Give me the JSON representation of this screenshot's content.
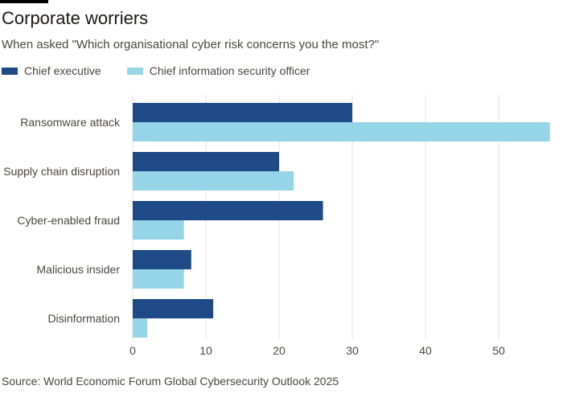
{
  "header": {
    "title": "Corporate worriers",
    "subtitle": "When asked \"Which organisational cyber risk concerns you the most?\""
  },
  "colors": {
    "series1": "#1e4b87",
    "series2": "#96d4e8",
    "grid": "#e6e1dd"
  },
  "chart_data": {
    "type": "bar",
    "orientation": "horizontal",
    "categories": [
      "Ransomware attack",
      "Supply chain disruption",
      "Cyber-enabled fraud",
      "Malicious insider",
      "Disinformation"
    ],
    "series": [
      {
        "name": "Chief executive",
        "values": [
          30,
          20,
          26,
          8,
          11
        ]
      },
      {
        "name": "Chief information security officer",
        "values": [
          57,
          22,
          7,
          7,
          2
        ]
      }
    ],
    "xticks": [
      0,
      10,
      20,
      30,
      40,
      50
    ],
    "xlim": [
      0,
      57
    ],
    "grid": true,
    "legend_position": "top-left"
  },
  "footer": {
    "source": "Source: World Economic Forum Global Cybersecurity Outlook 2025"
  }
}
